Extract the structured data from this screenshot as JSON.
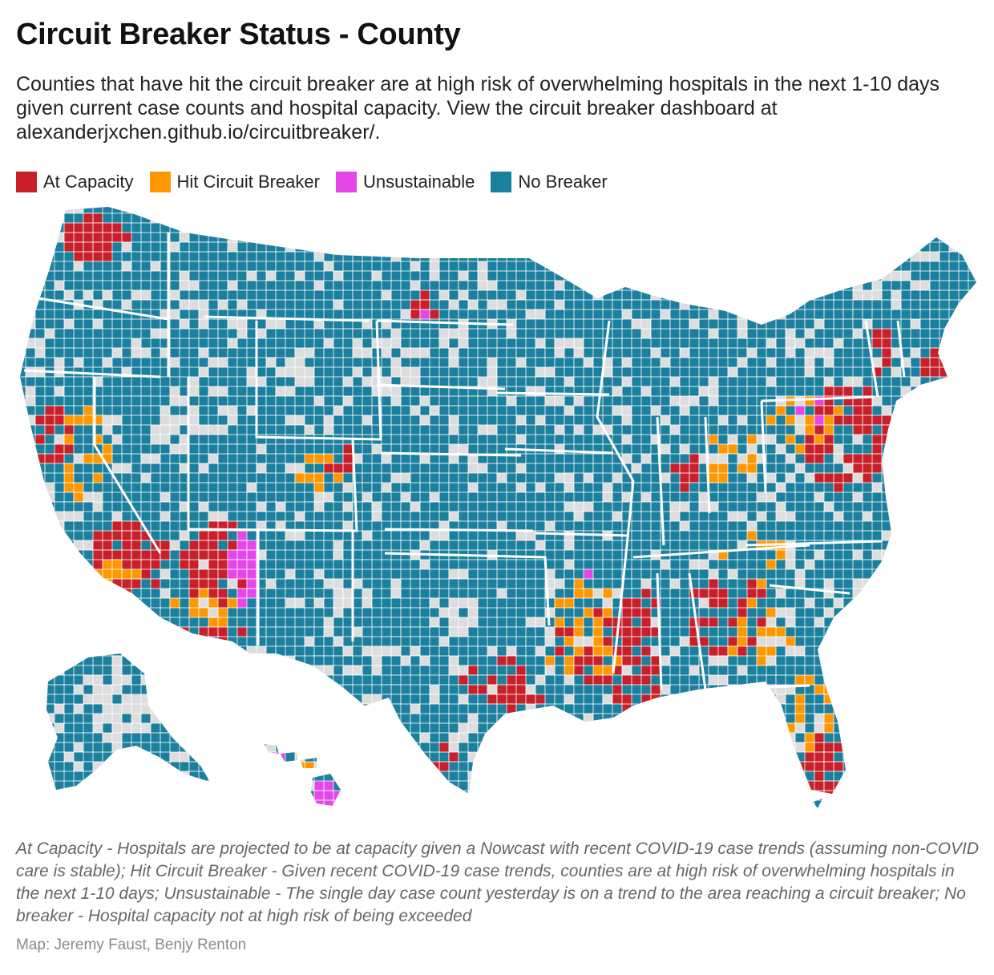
{
  "title": "Circuit Breaker Status - County",
  "subtitle": "Counties that have hit the circuit breaker are at high risk of overwhelming hospitals in the next 1-10 days given current case counts and hospital capacity. View the circuit breaker dashboard at alexanderjxchen.github.io/circuitbreaker/.",
  "legend": [
    {
      "label": "At Capacity",
      "color": "#c8202a"
    },
    {
      "label": "Hit Circuit Breaker",
      "color": "#ff9800"
    },
    {
      "label": "Unsustainable",
      "color": "#e546e8"
    },
    {
      "label": "No Breaker",
      "color": "#1b7f9e"
    }
  ],
  "colors": {
    "no_data": "#dddddd",
    "boundary": "#ffffff"
  },
  "notes": "At Capacity - Hospitals are projected to be at capacity given a Nowcast with recent COVID-19 case trends (assuming non-COVID care is stable); Hit Circuit Breaker - Given recent COVID-19 case trends, counties are at high risk of overwhelming hospitals in the next 1-10 days; Unsustainable - The single day case count yesterday is on a trend to the area reaching a circuit breaker; No breaker - Hospital capacity not at high risk of being exceeded",
  "credit": "Map: Jeremy Faust, Benjy Renton"
}
